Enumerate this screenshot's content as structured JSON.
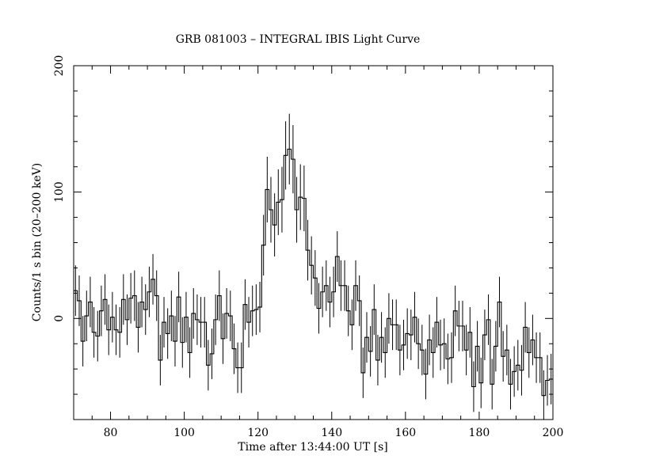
{
  "chart_data": {
    "type": "line",
    "style": "histogram-step-with-error-bars",
    "title": "GRB 081003 – INTEGRAL IBIS Light Curve",
    "xlabel": "Time after 13:44:00 UT [s]",
    "ylabel": "Counts/1 s bin (20–200 keV)",
    "xlim": [
      70,
      200
    ],
    "ylim": [
      -80,
      200
    ],
    "xticks": [
      80,
      100,
      120,
      140,
      160,
      180,
      200
    ],
    "yticks": [
      0,
      100,
      200
    ],
    "x_minor_step": 5,
    "y_minor_step": 20,
    "grid": false,
    "bin_width": 1,
    "x_start": 70,
    "values": [
      22,
      14,
      -18,
      2,
      13,
      -11,
      -14,
      6,
      15,
      -9,
      1,
      -9,
      -11,
      15,
      -1,
      16,
      18,
      -7,
      13,
      7,
      21,
      31,
      18,
      -33,
      -3,
      -12,
      2,
      -18,
      17,
      -19,
      1,
      -27,
      4,
      -1,
      -3,
      -3,
      -37,
      -28,
      -1,
      18,
      -16,
      4,
      2,
      -24,
      -39,
      -39,
      11,
      -3,
      6,
      7,
      9,
      58,
      102,
      86,
      74,
      92,
      94,
      129,
      134,
      126,
      86,
      96,
      95,
      54,
      42,
      32,
      8,
      21,
      26,
      13,
      21,
      49,
      26,
      26,
      6,
      -5,
      26,
      14,
      -43,
      -15,
      -26,
      7,
      -33,
      -15,
      -27,
      0,
      -5,
      -5,
      -25,
      -21,
      -12,
      -13,
      1,
      -20,
      -25,
      -44,
      -17,
      -27,
      -3,
      -21,
      -20,
      -32,
      -31,
      6,
      -6,
      -6,
      -25,
      -11,
      -54,
      -22,
      -51,
      -13,
      -1,
      -52,
      -22,
      13,
      -30,
      -25,
      -52,
      -42,
      -37,
      -41,
      -7,
      -27,
      -17,
      -31,
      -31,
      -61,
      -49,
      -48
    ],
    "errors": [
      20,
      20,
      20,
      20,
      20,
      20,
      20,
      20,
      20,
      20,
      20,
      20,
      20,
      20,
      20,
      20,
      20,
      20,
      20,
      20,
      20,
      20,
      20,
      20,
      20,
      20,
      20,
      20,
      20,
      20,
      20,
      20,
      20,
      20,
      20,
      20,
      20,
      20,
      20,
      20,
      20,
      20,
      20,
      20,
      20,
      20,
      20,
      20,
      20,
      20,
      20,
      24,
      26,
      26,
      25,
      26,
      26,
      27,
      28,
      27,
      26,
      26,
      26,
      24,
      23,
      22,
      20,
      20,
      20,
      20,
      20,
      20,
      20,
      20,
      20,
      20,
      20,
      20,
      20,
      20,
      20,
      20,
      20,
      20,
      20,
      20,
      20,
      20,
      20,
      20,
      20,
      20,
      20,
      20,
      20,
      20,
      20,
      20,
      20,
      20,
      20,
      20,
      20,
      20,
      20,
      20,
      20,
      20,
      20,
      20,
      20,
      20,
      20,
      20,
      20,
      20,
      20,
      20,
      20,
      20,
      20,
      20,
      20,
      20,
      20,
      20,
      20,
      20,
      20,
      20
    ],
    "line_color": "#000000"
  }
}
